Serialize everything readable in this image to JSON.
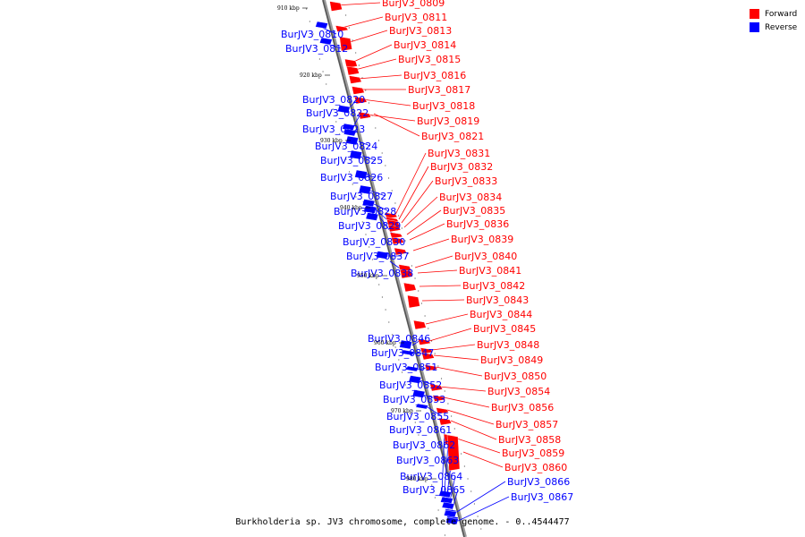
{
  "legend": {
    "forward": {
      "label": "Forward",
      "color": "#ff0000"
    },
    "reverse": {
      "label": "Reverse",
      "color": "#0000ff"
    }
  },
  "caption": "Burkholderia sp. JV3 chromosome, complete genome. - 0..4544477",
  "ticks": [
    "910 kbp",
    "920 kbp",
    "930 kbp",
    "940 kbp",
    "950 kbp",
    "960 kbp",
    "970 kbp",
    "980 kbp"
  ],
  "genes": {
    "forward": [
      "BurJV3_0809",
      "BurJV3_0811",
      "BurJV3_0813",
      "BurJV3_0814",
      "BurJV3_0815",
      "BurJV3_0816",
      "BurJV3_0817",
      "BurJV3_0818",
      "BurJV3_0819",
      "BurJV3_0821",
      "BurJV3_0831",
      "BurJV3_0832",
      "BurJV3_0833",
      "BurJV3_0834",
      "BurJV3_0835",
      "BurJV3_0836",
      "BurJV3_0839",
      "BurJV3_0840",
      "BurJV3_0841",
      "BurJV3_0842",
      "BurJV3_0843",
      "BurJV3_0844",
      "BurJV3_0845",
      "BurJV3_0848",
      "BurJV3_0849",
      "BurJV3_0850",
      "BurJV3_0854",
      "BurJV3_0856",
      "BurJV3_0857",
      "BurJV3_0858",
      "BurJV3_0859",
      "BurJV3_0860"
    ],
    "reverse": [
      "BurJV3_0810",
      "BurJV3_0812",
      "BurJV3_0820",
      "BurJV3_0822",
      "BurJV3_0823",
      "BurJV3_0824",
      "BurJV3_0825",
      "BurJV3_0826",
      "BurJV3_0827",
      "BurJV3_0828",
      "BurJV3_0829",
      "BurJV3_0830",
      "BurJV3_0837",
      "BurJV3_0838",
      "BurJV3_0846",
      "BurJV3_0847",
      "BurJV3_0851",
      "BurJV3_0852",
      "BurJV3_0853",
      "BurJV3_0855",
      "BurJV3_0861",
      "BurJV3_0862",
      "BurJV3_0863",
      "BurJV3_0864",
      "BurJV3_0865",
      "BurJV3_0866",
      "BurJV3_0867"
    ]
  }
}
